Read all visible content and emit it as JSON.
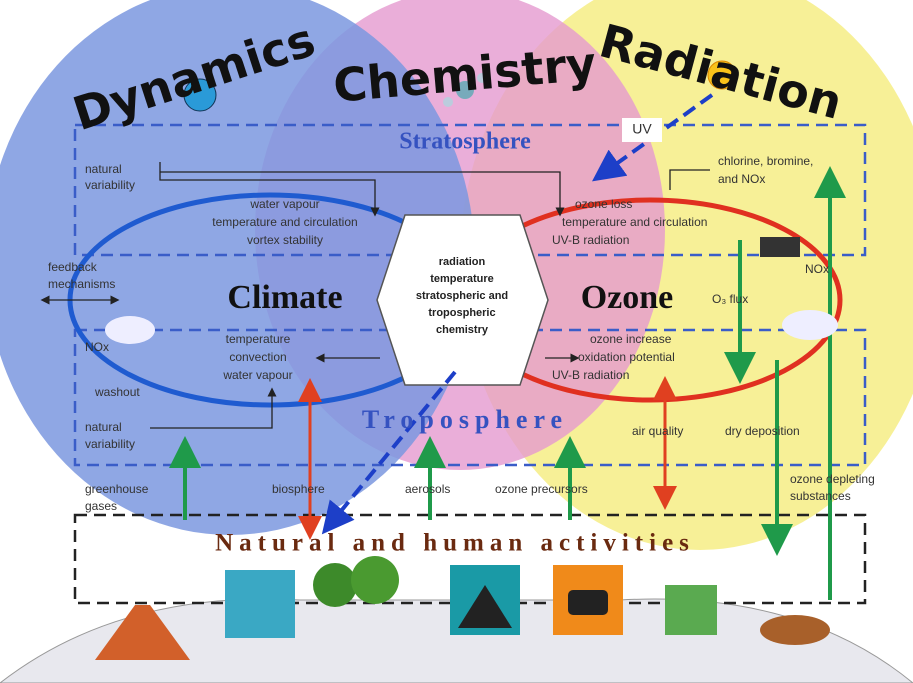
{
  "headers": [
    "Dynamics",
    "Chemistry",
    "Radiation"
  ],
  "layers": {
    "stratosphere": "Stratosphere",
    "troposphere": "Troposphere",
    "surface": "Natural and human activities"
  },
  "uv": "UV",
  "stratosphere_left": {
    "natural_variability": [
      "natural",
      "variability"
    ],
    "effects": [
      "water vapour",
      "temperature and circulation",
      "vortex stability"
    ]
  },
  "stratosphere_right": {
    "inputs": [
      "chlorine, bromine,",
      "and NOx"
    ],
    "effects": [
      "ozone loss",
      "temperature and circulation",
      "UV-B radiation"
    ]
  },
  "feedback": [
    "feedback",
    "mechanisms"
  ],
  "climate": "Climate",
  "ozone": "Ozone",
  "center": [
    "radiation",
    "temperature",
    "stratospheric and",
    "tropospheric",
    "chemistry"
  ],
  "right_labels": {
    "nox": "NOx",
    "o3_flux": "O₃ flux"
  },
  "troposphere_left": {
    "nox": "NOx",
    "washout": "washout",
    "effects": [
      "temperature",
      "convection",
      "water vapour"
    ],
    "natural_variability": [
      "natural",
      "variability"
    ]
  },
  "troposphere_right": {
    "effects": [
      "ozone increase",
      "oxidation potential",
      "UV-B radiation"
    ],
    "air_quality": "air quality",
    "dry_deposition": "dry deposition"
  },
  "sources": {
    "greenhouse_gases": [
      "greenhouse",
      "gases"
    ],
    "biosphere": "biosphere",
    "aerosols": "aerosols",
    "ozone_precursors": "ozone precursors",
    "ozone_depleting": [
      "ozone depleting",
      "substances"
    ]
  }
}
